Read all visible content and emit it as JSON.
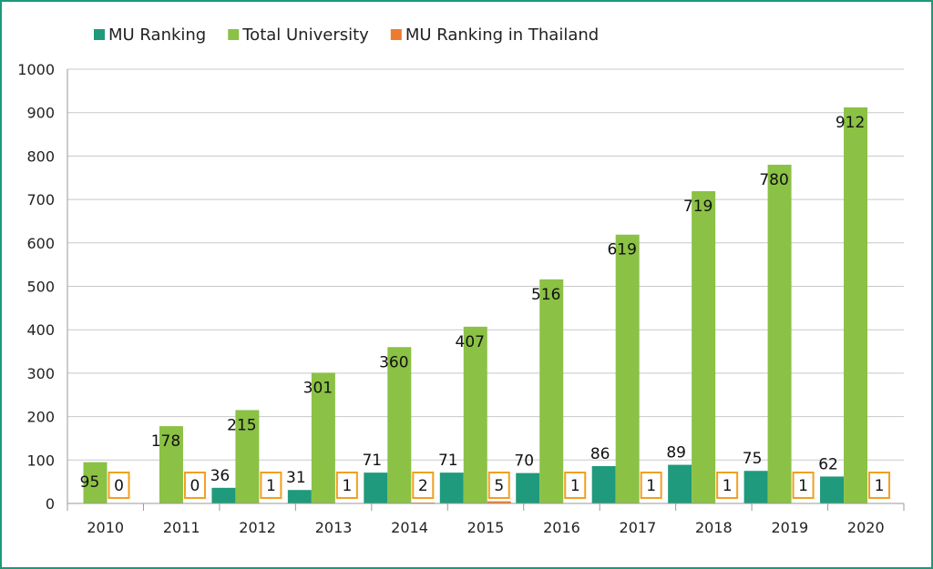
{
  "chart_data": {
    "type": "bar",
    "categories": [
      "2010",
      "2011",
      "2012",
      "2013",
      "2014",
      "2015",
      "2016",
      "2017",
      "2018",
      "2019",
      "2020"
    ],
    "series": [
      {
        "name": "MU Ranking",
        "color": "#1f9a7c",
        "values": [
          null,
          null,
          36,
          31,
          71,
          71,
          70,
          86,
          89,
          75,
          62
        ]
      },
      {
        "name": "Total University",
        "color": "#8bc145",
        "values": [
          95,
          178,
          215,
          301,
          360,
          407,
          516,
          619,
          719,
          780,
          912
        ]
      },
      {
        "name": "MU Ranking in Thailand",
        "color": "#ec7b30",
        "values": [
          0,
          0,
          1,
          1,
          2,
          5,
          1,
          1,
          1,
          1,
          1
        ]
      }
    ],
    "ylim": [
      0,
      1000
    ],
    "yticks": [
      0,
      100,
      200,
      300,
      400,
      500,
      600,
      700,
      800,
      900,
      1000
    ],
    "grid": true,
    "legend_position": "top-left",
    "label_box_color": "#f0a020"
  }
}
